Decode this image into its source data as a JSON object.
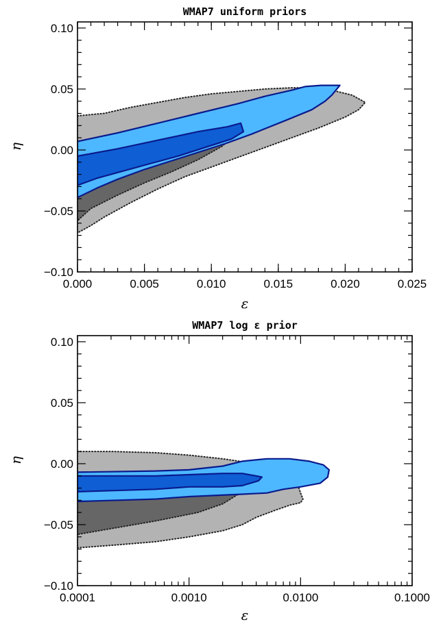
{
  "chart_data": [
    {
      "type": "contour",
      "title": "WMAP7  uniform priors",
      "xlabel": "ε",
      "ylabel": "η",
      "xscale": "linear",
      "xlim": [
        0.0,
        0.025
      ],
      "ylim": [
        -0.1,
        0.105
      ],
      "xticks": [
        0.0,
        0.005,
        0.01,
        0.015,
        0.02,
        0.025
      ],
      "xtick_labels": [
        "0.000",
        "0.005",
        "0.010",
        "0.015",
        "0.020",
        "0.025"
      ],
      "yticks": [
        -0.1,
        -0.05,
        0.0,
        0.05,
        0.1
      ],
      "ytick_labels": [
        "−0.10",
        "−0.05",
        "0.00",
        "0.05",
        "0.10"
      ],
      "grid": false,
      "regions": [
        {
          "level": "95%",
          "fill": "#b3b3b3",
          "line_style": "dotted",
          "points": [
            [
              0.0,
              0.028
            ],
            [
              0.002,
              0.03
            ],
            [
              0.004,
              0.035
            ],
            [
              0.006,
              0.039
            ],
            [
              0.008,
              0.043
            ],
            [
              0.01,
              0.046
            ],
            [
              0.012,
              0.048
            ],
            [
              0.014,
              0.05
            ],
            [
              0.016,
              0.051
            ],
            [
              0.018,
              0.051
            ],
            [
              0.019,
              0.049
            ],
            [
              0.0205,
              0.045
            ],
            [
              0.0215,
              0.039
            ],
            [
              0.021,
              0.033
            ],
            [
              0.02,
              0.027
            ],
            [
              0.018,
              0.018
            ],
            [
              0.016,
              0.01
            ],
            [
              0.014,
              0.002
            ],
            [
              0.012,
              -0.006
            ],
            [
              0.01,
              -0.014
            ],
            [
              0.008,
              -0.022
            ],
            [
              0.006,
              -0.032
            ],
            [
              0.004,
              -0.043
            ],
            [
              0.002,
              -0.055
            ],
            [
              0.001,
              -0.062
            ],
            [
              0.0,
              -0.068
            ]
          ]
        },
        {
          "level": "68%",
          "fill": "#666666",
          "line_style": "dotted",
          "points": [
            [
              0.0,
              0.003
            ],
            [
              0.003,
              0.008
            ],
            [
              0.006,
              0.014
            ],
            [
              0.009,
              0.018
            ],
            [
              0.0112,
              0.019
            ],
            [
              0.0115,
              0.01
            ],
            [
              0.0108,
              0.003
            ],
            [
              0.009,
              -0.008
            ],
            [
              0.007,
              -0.018
            ],
            [
              0.005,
              -0.027
            ],
            [
              0.003,
              -0.037
            ],
            [
              0.001,
              -0.048
            ],
            [
              0.0,
              -0.058
            ]
          ]
        },
        {
          "level": "95%",
          "fill": "#4db8ff",
          "line_style": "solid",
          "points": [
            [
              0.0,
              0.007
            ],
            [
              0.003,
              0.014
            ],
            [
              0.006,
              0.022
            ],
            [
              0.009,
              0.03
            ],
            [
              0.012,
              0.038
            ],
            [
              0.014,
              0.044
            ],
            [
              0.016,
              0.049
            ],
            [
              0.017,
              0.052
            ],
            [
              0.0182,
              0.053
            ],
            [
              0.0196,
              0.053
            ],
            [
              0.019,
              0.045
            ],
            [
              0.0185,
              0.04
            ],
            [
              0.0175,
              0.033
            ],
            [
              0.0155,
              0.024
            ],
            [
              0.013,
              0.013
            ],
            [
              0.011,
              0.005
            ],
            [
              0.009,
              -0.002
            ],
            [
              0.007,
              -0.009
            ],
            [
              0.005,
              -0.016
            ],
            [
              0.003,
              -0.024
            ],
            [
              0.0015,
              -0.031
            ],
            [
              0.0,
              -0.039
            ]
          ]
        },
        {
          "level": "68%",
          "fill": "#0f5ed4",
          "line_style": "solid",
          "points": [
            [
              0.0,
              -0.005
            ],
            [
              0.003,
              0.001
            ],
            [
              0.006,
              0.008
            ],
            [
              0.009,
              0.015
            ],
            [
              0.0112,
              0.019
            ],
            [
              0.0122,
              0.022
            ],
            [
              0.0124,
              0.015
            ],
            [
              0.0115,
              0.009
            ],
            [
              0.0095,
              0.002
            ],
            [
              0.0075,
              -0.005
            ],
            [
              0.0055,
              -0.011
            ],
            [
              0.0035,
              -0.017
            ],
            [
              0.0015,
              -0.023
            ],
            [
              0.0,
              -0.029
            ]
          ]
        }
      ]
    },
    {
      "type": "contour",
      "title": "WMAP7 log ε prior",
      "xlabel": "ε",
      "ylabel": "η",
      "xscale": "log",
      "xlim": [
        0.0001,
        0.1
      ],
      "ylim": [
        -0.1,
        0.105
      ],
      "xticks": [
        0.0001,
        0.001,
        0.01,
        0.1
      ],
      "xtick_labels": [
        "0.0001",
        "0.0010",
        "0.0100",
        "0.1000"
      ],
      "yticks": [
        -0.1,
        -0.05,
        0.0,
        0.05,
        0.1
      ],
      "ytick_labels": [
        "−0.10",
        "−0.05",
        "0.00",
        "0.05",
        "0.10"
      ],
      "grid": false,
      "regions": [
        {
          "level": "95%",
          "fill": "#b3b3b3",
          "line_style": "dotted",
          "points": [
            [
              0.0001,
              0.01
            ],
            [
              0.0002,
              0.01
            ],
            [
              0.0005,
              0.009
            ],
            [
              0.001,
              0.007
            ],
            [
              0.002,
              0.004
            ],
            [
              0.004,
              0.0
            ],
            [
              0.006,
              -0.005
            ],
            [
              0.008,
              -0.01
            ],
            [
              0.0095,
              -0.018
            ],
            [
              0.01,
              -0.024
            ],
            [
              0.0105,
              -0.029
            ],
            [
              0.01,
              -0.032
            ],
            [
              0.008,
              -0.034
            ],
            [
              0.006,
              -0.038
            ],
            [
              0.004,
              -0.044
            ],
            [
              0.003,
              -0.05
            ],
            [
              0.002,
              -0.055
            ],
            [
              0.001,
              -0.06
            ],
            [
              0.0005,
              -0.064
            ],
            [
              0.0002,
              -0.067
            ],
            [
              0.0001,
              -0.069
            ]
          ]
        },
        {
          "level": "68%",
          "fill": "#666666",
          "line_style": "dotted",
          "points": [
            [
              0.0001,
              -0.008
            ],
            [
              0.0005,
              -0.008
            ],
            [
              0.001,
              -0.009
            ],
            [
              0.002,
              -0.011
            ],
            [
              0.003,
              -0.013
            ],
            [
              0.0035,
              -0.017
            ],
            [
              0.003,
              -0.023
            ],
            [
              0.002,
              -0.033
            ],
            [
              0.0012,
              -0.04
            ],
            [
              0.0005,
              -0.047
            ],
            [
              0.0001,
              -0.058
            ]
          ]
        },
        {
          "level": "95%",
          "fill": "#4db8ff",
          "line_style": "solid",
          "points": [
            [
              0.0001,
              -0.007
            ],
            [
              0.0005,
              -0.006
            ],
            [
              0.001,
              -0.005
            ],
            [
              0.002,
              -0.002
            ],
            [
              0.003,
              0.002
            ],
            [
              0.005,
              0.004
            ],
            [
              0.008,
              0.004
            ],
            [
              0.012,
              0.002
            ],
            [
              0.016,
              -0.001
            ],
            [
              0.018,
              -0.005
            ],
            [
              0.0175,
              -0.011
            ],
            [
              0.015,
              -0.016
            ],
            [
              0.01,
              -0.019
            ],
            [
              0.007,
              -0.021
            ],
            [
              0.005,
              -0.024
            ],
            [
              0.003,
              -0.025
            ],
            [
              0.001,
              -0.027
            ],
            [
              0.0005,
              -0.029
            ],
            [
              0.0001,
              -0.031
            ]
          ]
        },
        {
          "level": "68%",
          "fill": "#0f5ed4",
          "line_style": "solid",
          "points": [
            [
              0.0001,
              -0.01
            ],
            [
              0.0005,
              -0.01
            ],
            [
              0.001,
              -0.009
            ],
            [
              0.002,
              -0.008
            ],
            [
              0.003,
              -0.008
            ],
            [
              0.004,
              -0.01
            ],
            [
              0.0045,
              -0.011
            ],
            [
              0.0042,
              -0.014
            ],
            [
              0.003,
              -0.018
            ],
            [
              0.002,
              -0.019
            ],
            [
              0.001,
              -0.019
            ],
            [
              0.0005,
              -0.021
            ],
            [
              0.0001,
              -0.023
            ]
          ]
        }
      ]
    }
  ]
}
